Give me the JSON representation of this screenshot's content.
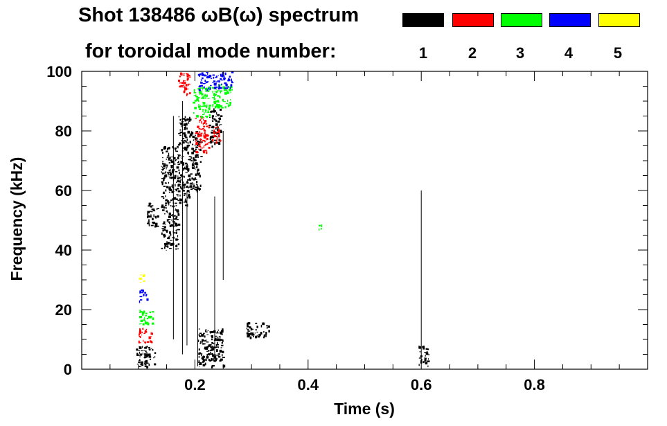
{
  "chart_data": {
    "type": "heatmap",
    "title_line1": "Shot 138486 ωB(ω) spectrum",
    "title_line2": "for toroidal mode number:",
    "xlabel": "Time (s)",
    "ylabel": "Frequency (kHz)",
    "xlim": [
      0.0,
      1.0
    ],
    "ylim": [
      0,
      100
    ],
    "xticks": [
      0.2,
      0.4,
      0.6,
      0.8
    ],
    "xtick_labels": [
      "0.2",
      "0.4",
      "0.6",
      "0.8"
    ],
    "yticks": [
      0,
      20,
      40,
      60,
      80,
      100
    ],
    "ytick_labels": [
      "0",
      "20",
      "40",
      "60",
      "80",
      "100"
    ],
    "grid": false,
    "legend_placement": "top-right",
    "legend": [
      {
        "label": "1",
        "color": "#000000"
      },
      {
        "label": "2",
        "color": "#ff0000"
      },
      {
        "label": "3",
        "color": "#00ff00"
      },
      {
        "label": "4",
        "color": "#0000ff"
      },
      {
        "label": "5",
        "color": "#ffff00"
      }
    ],
    "series": [
      {
        "mode": "1",
        "color": "#000000",
        "blobs": [
          {
            "t": [
              0.095,
              0.13
            ],
            "f": [
              1,
              8
            ]
          },
          {
            "t": [
              0.14,
              0.17
            ],
            "f": [
              40,
              75
            ]
          },
          {
            "t": [
              0.17,
              0.19
            ],
            "f": [
              55,
              85
            ]
          },
          {
            "t": [
              0.19,
              0.21
            ],
            "f": [
              60,
              80
            ]
          },
          {
            "t": [
              0.115,
              0.135
            ],
            "f": [
              48,
              56
            ]
          },
          {
            "t": [
              0.205,
              0.25
            ],
            "f": [
              1,
              14
            ]
          },
          {
            "t": [
              0.29,
              0.33
            ],
            "f": [
              11,
              16
            ]
          },
          {
            "t": [
              0.595,
              0.612
            ],
            "f": [
              1,
              8
            ]
          },
          {
            "t": [
              0.225,
              0.245
            ],
            "f": [
              75,
              88
            ]
          }
        ]
      },
      {
        "mode": "2",
        "color": "#ff0000",
        "blobs": [
          {
            "t": [
              0.1,
              0.125
            ],
            "f": [
              9,
              14
            ]
          },
          {
            "t": [
              0.17,
              0.19
            ],
            "f": [
              92,
              100
            ]
          },
          {
            "t": [
              0.2,
              0.225
            ],
            "f": [
              73,
              85
            ]
          },
          {
            "t": [
              0.23,
              0.245
            ],
            "f": [
              76,
              82
            ]
          }
        ]
      },
      {
        "mode": "3",
        "color": "#00ff00",
        "blobs": [
          {
            "t": [
              0.1,
              0.125
            ],
            "f": [
              15,
              20
            ]
          },
          {
            "t": [
              0.195,
              0.225
            ],
            "f": [
              85,
              95
            ]
          },
          {
            "t": [
              0.23,
              0.265
            ],
            "f": [
              88,
              96
            ]
          },
          {
            "t": [
              0.418,
              0.424
            ],
            "f": [
              47,
              49
            ]
          }
        ]
      },
      {
        "mode": "4",
        "color": "#0000ff",
        "blobs": [
          {
            "t": [
              0.1,
              0.115
            ],
            "f": [
              23,
              27
            ]
          },
          {
            "t": [
              0.205,
              0.265
            ],
            "f": [
              94,
              100
            ]
          }
        ]
      },
      {
        "mode": "5",
        "color": "#ffff00",
        "blobs": [
          {
            "t": [
              0.1,
              0.11
            ],
            "f": [
              29,
              32
            ]
          }
        ]
      }
    ]
  }
}
